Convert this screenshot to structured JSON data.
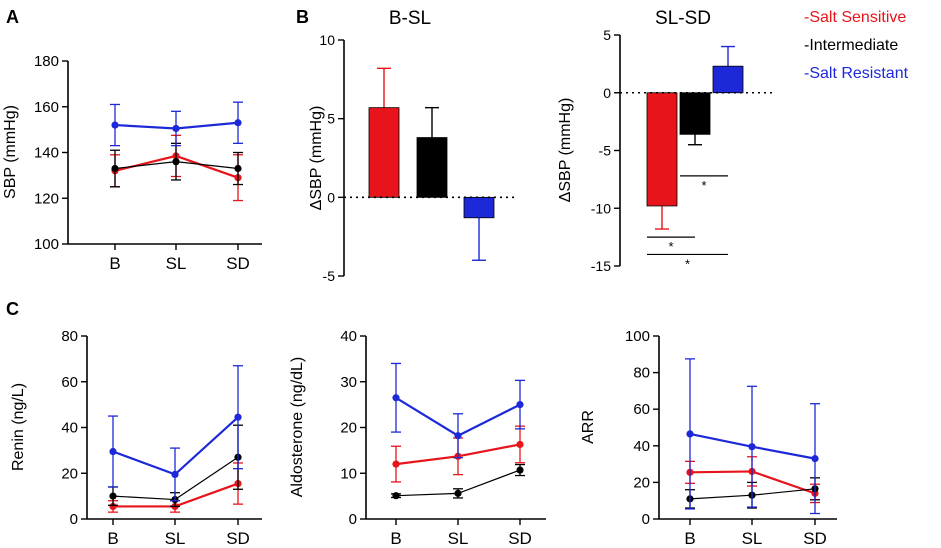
{
  "colors": {
    "salt_sensitive": "#e8141b",
    "intermediate": "#000000",
    "salt_resistant": "#1d29d9",
    "axis": "#000000"
  },
  "legend": [
    {
      "label": "-Salt Sensitive",
      "color": "#e8141b"
    },
    {
      "label": "-Intermediate",
      "color": "#000000"
    },
    {
      "label": "-Salt Resistant",
      "color": "#1d29d9"
    }
  ],
  "panels": {
    "A": "A",
    "B": "B",
    "C": "C"
  },
  "chart_data": [
    {
      "id": "A",
      "type": "line",
      "title": "",
      "xlabel": "",
      "ylabel": "SBP (mmHg)",
      "categories": [
        "B",
        "SL",
        "SD"
      ],
      "ylim": [
        100,
        180
      ],
      "yticks": [
        100,
        120,
        140,
        160,
        180
      ],
      "series": [
        {
          "name": "Salt Sensitive",
          "values": [
            132,
            138.5,
            129
          ],
          "err": [
            7,
            9,
            10
          ]
        },
        {
          "name": "Intermediate",
          "values": [
            133,
            136,
            133
          ],
          "err": [
            8,
            8,
            7
          ]
        },
        {
          "name": "Salt Resistant",
          "values": [
            152,
            150.5,
            153
          ],
          "err": [
            9,
            7.5,
            9
          ]
        }
      ]
    },
    {
      "id": "B1",
      "type": "bar",
      "title": "B-SL",
      "xlabel": "",
      "ylabel": "ΔSBP (mmHg)",
      "categories": [
        "Salt Sensitive",
        "Intermediate",
        "Salt Resistant"
      ],
      "values": [
        5.7,
        3.8,
        -1.3
      ],
      "err": [
        2.5,
        1.9,
        2.7
      ],
      "ylim": [
        -5,
        10
      ],
      "yticks": [
        -5,
        0,
        5,
        10
      ],
      "significance": []
    },
    {
      "id": "B2",
      "type": "bar",
      "title": "SL-SD",
      "xlabel": "",
      "ylabel": "ΔSBP (mmHg)",
      "categories": [
        "Salt Sensitive",
        "Intermediate",
        "Salt Resistant"
      ],
      "values": [
        -9.8,
        -3.6,
        2.3
      ],
      "err": [
        2.0,
        0.9,
        1.7
      ],
      "ylim": [
        -15,
        5
      ],
      "yticks": [
        -15,
        -10,
        -5,
        0,
        5
      ],
      "significance": [
        {
          "from": 1,
          "to": 2,
          "y": -7.2,
          "label": "*"
        },
        {
          "from": 0,
          "to": 1,
          "y": -12.5,
          "label": "*"
        },
        {
          "from": 0,
          "to": 2,
          "y": -14.0,
          "label": "*"
        }
      ]
    },
    {
      "id": "C1",
      "type": "line",
      "title": "",
      "xlabel": "",
      "ylabel": "Renin (ng/L)",
      "categories": [
        "B",
        "SL",
        "SD"
      ],
      "ylim": [
        0,
        80
      ],
      "yticks": [
        0,
        20,
        40,
        60,
        80
      ],
      "series": [
        {
          "name": "Salt Sensitive",
          "values": [
            5.5,
            5.5,
            15.5
          ],
          "err": [
            2.5,
            2.5,
            9
          ]
        },
        {
          "name": "Intermediate",
          "values": [
            10,
            8.5,
            27
          ],
          "err": [
            4,
            3,
            14
          ]
        },
        {
          "name": "Salt Resistant",
          "values": [
            29.5,
            19.5,
            44.5
          ],
          "err": [
            15.5,
            11.5,
            22.5
          ]
        }
      ]
    },
    {
      "id": "C2",
      "type": "line",
      "title": "",
      "xlabel": "",
      "ylabel": "Aldosterone (ng/dL)",
      "categories": [
        "B",
        "SL",
        "SD"
      ],
      "ylim": [
        0,
        40
      ],
      "yticks": [
        0,
        10,
        20,
        30,
        40
      ],
      "series": [
        {
          "name": "Salt Sensitive",
          "values": [
            12,
            13.7,
            16.3
          ],
          "err": [
            3.9,
            4,
            4
          ]
        },
        {
          "name": "Intermediate",
          "values": [
            5.1,
            5.6,
            10.7
          ],
          "err": [
            0.4,
            1,
            1.2
          ]
        },
        {
          "name": "Salt Resistant",
          "values": [
            26.5,
            18.2,
            25
          ],
          "err": [
            7.5,
            4.8,
            5.3
          ]
        }
      ]
    },
    {
      "id": "C3",
      "type": "line",
      "title": "",
      "xlabel": "",
      "ylabel": "ARR",
      "categories": [
        "B",
        "SL",
        "SD"
      ],
      "ylim": [
        0,
        100
      ],
      "yticks": [
        0,
        20,
        40,
        60,
        80,
        100
      ],
      "series": [
        {
          "name": "Salt Sensitive",
          "values": [
            25.5,
            26,
            14
          ],
          "err": [
            6,
            8,
            5
          ]
        },
        {
          "name": "Intermediate",
          "values": [
            11,
            13,
            16.5
          ],
          "err": [
            5,
            7,
            6
          ]
        },
        {
          "name": "Salt Resistant",
          "values": [
            46.5,
            39.5,
            33
          ],
          "err": [
            41,
            33,
            30
          ]
        }
      ]
    }
  ]
}
